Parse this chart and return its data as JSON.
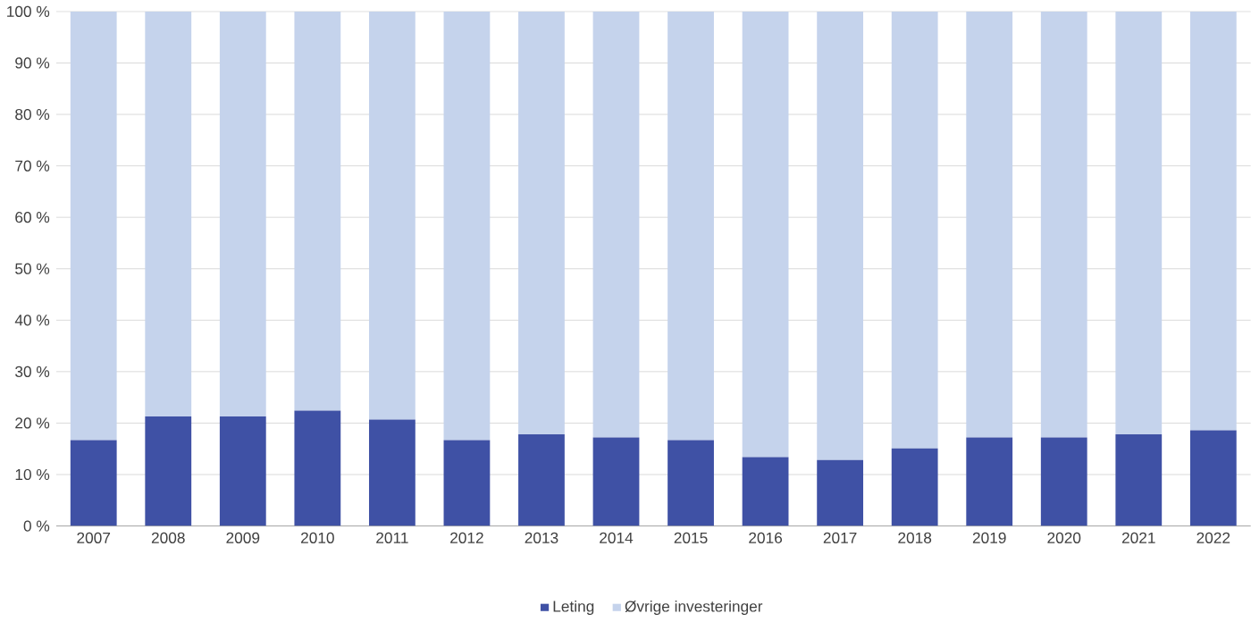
{
  "chart_data": {
    "type": "bar",
    "stacked": true,
    "categories": [
      "2007",
      "2008",
      "2009",
      "2010",
      "2011",
      "2012",
      "2013",
      "2014",
      "2015",
      "2016",
      "2017",
      "2018",
      "2019",
      "2020",
      "2021",
      "2022"
    ],
    "series": [
      {
        "name": "Leting",
        "color": "#3f51a5",
        "values": [
          16.7,
          21.3,
          21.3,
          22.4,
          20.7,
          16.7,
          17.8,
          17.2,
          16.7,
          13.4,
          12.8,
          15.1,
          17.2,
          17.2,
          17.8,
          18.6
        ]
      },
      {
        "name": "Øvrige investeringer",
        "color": "#c5d3ec",
        "values": [
          83.3,
          78.7,
          78.7,
          77.6,
          79.3,
          83.3,
          82.2,
          82.8,
          83.3,
          86.6,
          87.2,
          84.9,
          82.8,
          82.8,
          82.2,
          81.4
        ]
      }
    ],
    "ylim": [
      0,
      100
    ],
    "yticks": [
      {
        "value": 0,
        "label": "0 %"
      },
      {
        "value": 10,
        "label": "10 %"
      },
      {
        "value": 20,
        "label": "20 %"
      },
      {
        "value": 30,
        "label": "30 %"
      },
      {
        "value": 40,
        "label": "40 %"
      },
      {
        "value": 50,
        "label": "50 %"
      },
      {
        "value": 60,
        "label": "60 %"
      },
      {
        "value": 70,
        "label": "70 %"
      },
      {
        "value": 80,
        "label": "80 %"
      },
      {
        "value": 90,
        "label": "90 %"
      },
      {
        "value": 100,
        "label": "100 %"
      }
    ],
    "grid": "y",
    "legend": "bottom"
  }
}
